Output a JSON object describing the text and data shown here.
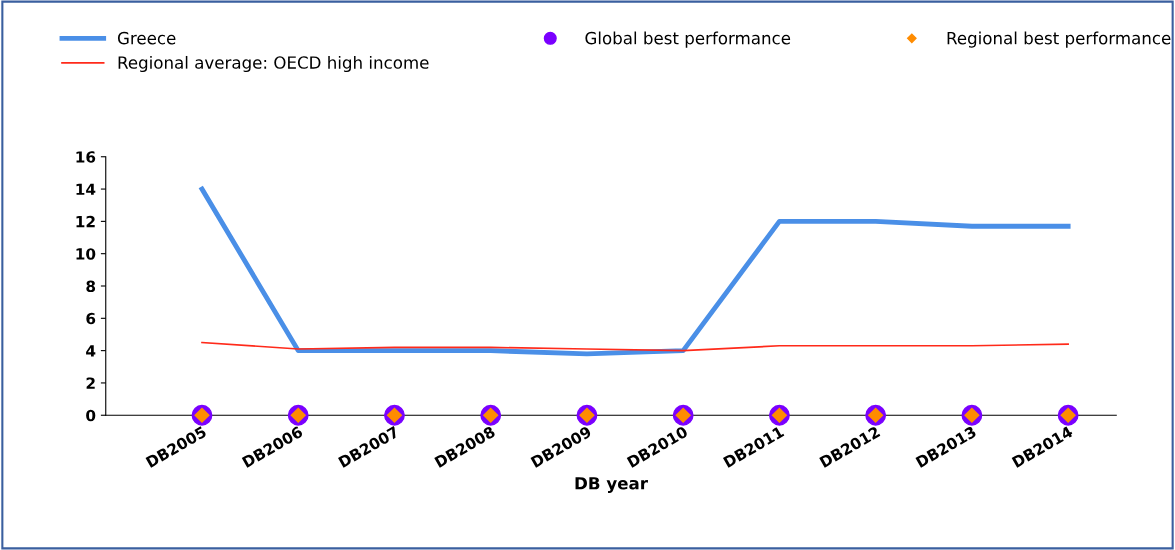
{
  "chart_data": {
    "type": "line",
    "xlabel": "DB year",
    "categories": [
      "DB2005",
      "DB2006",
      "DB2007",
      "DB2008",
      "DB2009",
      "DB2010",
      "DB2011",
      "DB2012",
      "DB2013",
      "DB2014"
    ],
    "series": [
      {
        "name": "Greece",
        "color": "#4a8fe7",
        "values": [
          14,
          4,
          4,
          4,
          3.8,
          4,
          12,
          12,
          11.7,
          11.7
        ]
      },
      {
        "name": "Regional average: OECD high income",
        "color": "#ff2a1a",
        "values": [
          4.5,
          4.1,
          4.2,
          4.2,
          4.1,
          4.0,
          4.3,
          4.3,
          4.3,
          4.4
        ]
      },
      {
        "name": "Global best performance",
        "color": "#7a00ff",
        "type": "scatter",
        "marker": "circle",
        "values": [
          0,
          0,
          0,
          0,
          0,
          0,
          0,
          0,
          0,
          0
        ]
      },
      {
        "name": "Regional best performance",
        "color": "#ff8c00",
        "type": "scatter",
        "marker": "diamond",
        "values": [
          0,
          0,
          0,
          0,
          0,
          0,
          0,
          0,
          0,
          0
        ]
      }
    ],
    "ylim": [
      0,
      16
    ],
    "yticks": [
      0,
      2,
      4,
      6,
      8,
      10,
      12,
      14,
      16
    ],
    "grid": false,
    "legend": "top"
  }
}
